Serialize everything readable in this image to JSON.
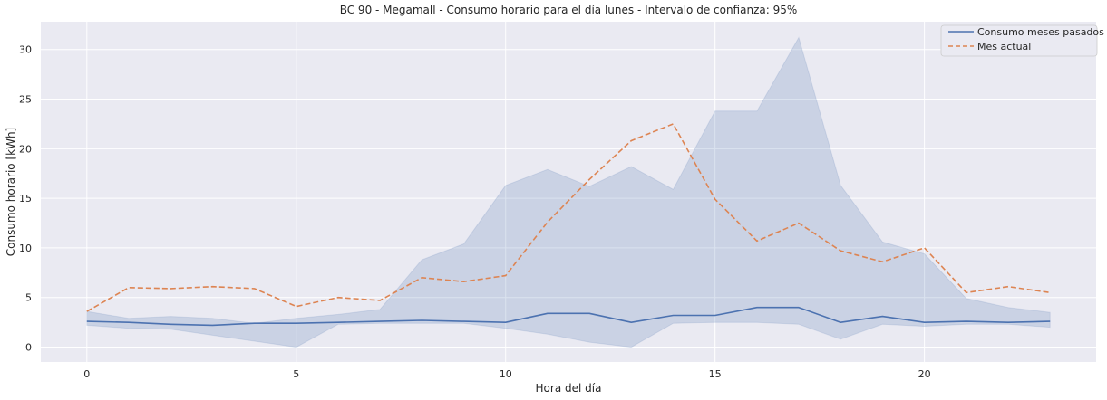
{
  "chart_data": {
    "type": "line",
    "title": "BC 90 - Megamall - Consumo horario para el día lunes - Intervalo de confianza: 95%",
    "xlabel": "Hora del día",
    "ylabel": "Consumo horario [kWh]",
    "xlim": [
      -1.1,
      24.1
    ],
    "ylim": [
      -1.5,
      32.8
    ],
    "x_ticks": [
      0,
      5,
      10,
      15,
      20
    ],
    "y_ticks": [
      0,
      5,
      10,
      15,
      20,
      25,
      30
    ],
    "grid": true,
    "legend_position": "top-right",
    "x": [
      0,
      1,
      2,
      3,
      4,
      5,
      6,
      7,
      8,
      9,
      10,
      11,
      12,
      13,
      14,
      15,
      16,
      17,
      18,
      19,
      20,
      21,
      22,
      23
    ],
    "series": [
      {
        "name": "Consumo meses pasados",
        "style": "solid",
        "color": "#4c72b0",
        "values": [
          2.6,
          2.5,
          2.3,
          2.2,
          2.4,
          2.4,
          2.5,
          2.6,
          2.7,
          2.6,
          2.5,
          3.4,
          3.4,
          2.5,
          3.2,
          3.2,
          4.0,
          4.0,
          2.5,
          3.1,
          2.5,
          2.6,
          2.5,
          2.6
        ],
        "ci_lower": [
          2.2,
          1.9,
          1.8,
          1.2,
          0.6,
          0.0,
          2.3,
          2.4,
          2.4,
          2.4,
          1.9,
          1.3,
          0.5,
          0.0,
          2.4,
          2.5,
          2.5,
          2.3,
          0.8,
          2.3,
          2.1,
          2.3,
          2.3,
          2.0
        ],
        "ci_upper": [
          3.6,
          2.9,
          3.1,
          2.9,
          2.4,
          2.9,
          3.3,
          3.8,
          8.8,
          10.4,
          16.3,
          17.9,
          16.2,
          18.2,
          15.9,
          23.8,
          23.8,
          31.2,
          16.3,
          10.6,
          9.4,
          4.9,
          4.0,
          3.5
        ]
      },
      {
        "name": "Mes actual",
        "style": "dashed",
        "color": "#dd8452",
        "values": [
          3.6,
          6.0,
          5.9,
          6.1,
          5.9,
          4.1,
          5.0,
          4.7,
          7.0,
          6.6,
          7.2,
          12.6,
          16.9,
          20.8,
          22.5,
          14.9,
          10.7,
          12.5,
          9.7,
          8.6,
          10.0,
          5.5,
          6.1,
          5.5
        ]
      }
    ]
  }
}
